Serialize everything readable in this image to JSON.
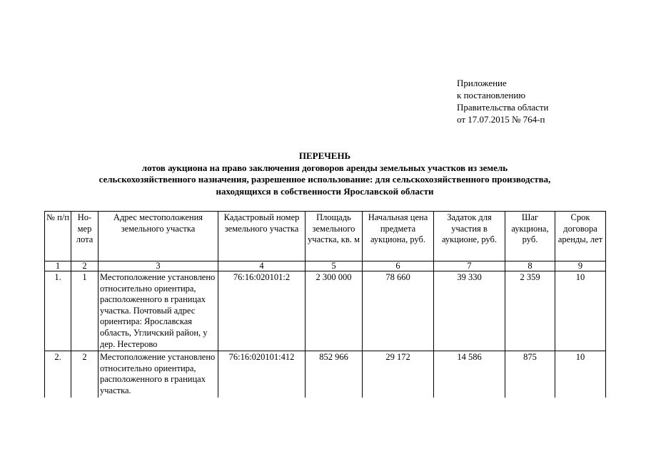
{
  "appendix": {
    "lines": [
      "Приложение",
      "к постановлению",
      "Правительства области",
      "от 17.07.2015 № 764-п"
    ]
  },
  "title": {
    "heading": "ПЕРЕЧЕНЬ",
    "lines": [
      "лотов аукциона на право заключения договоров аренды земельных участков из земель",
      "сельскохозяйственного назначения, разрешенное использование: для сельскохозяйственного производства,",
      "находящихся в собственности Ярославской области"
    ]
  },
  "table": {
    "headers": [
      "№ п/п",
      "Но-мер лота",
      "Адрес местоположения земельного участка",
      "Кадастровый номер земельного участка",
      "Площадь земельного участка, кв. м",
      "Начальная цена предмета аукциона, руб.",
      "Задаток для участия в аукционе, руб.",
      "Шаг аукциона, руб.",
      "Срок договора аренды, лет"
    ],
    "column_numbers": [
      "1",
      "2",
      "3",
      "4",
      "5",
      "6",
      "7",
      "8",
      "9"
    ],
    "rows": [
      [
        "1.",
        "1",
        "Местоположение установлено относительно ориентира, расположенного в границах участка. Почтовый адрес ориентира: Ярославская область, Угличский район, у дер. Нестерово",
        "76:16:020101:2",
        "2 300 000",
        "78 660",
        "39 330",
        "2 359",
        "10"
      ],
      [
        "2.",
        "2",
        "Местоположение установлено относительно ориентира, расположенного в границах участка.",
        "76:16:020101:412",
        "852 966",
        "29 172",
        "14 586",
        "875",
        "10"
      ]
    ]
  }
}
